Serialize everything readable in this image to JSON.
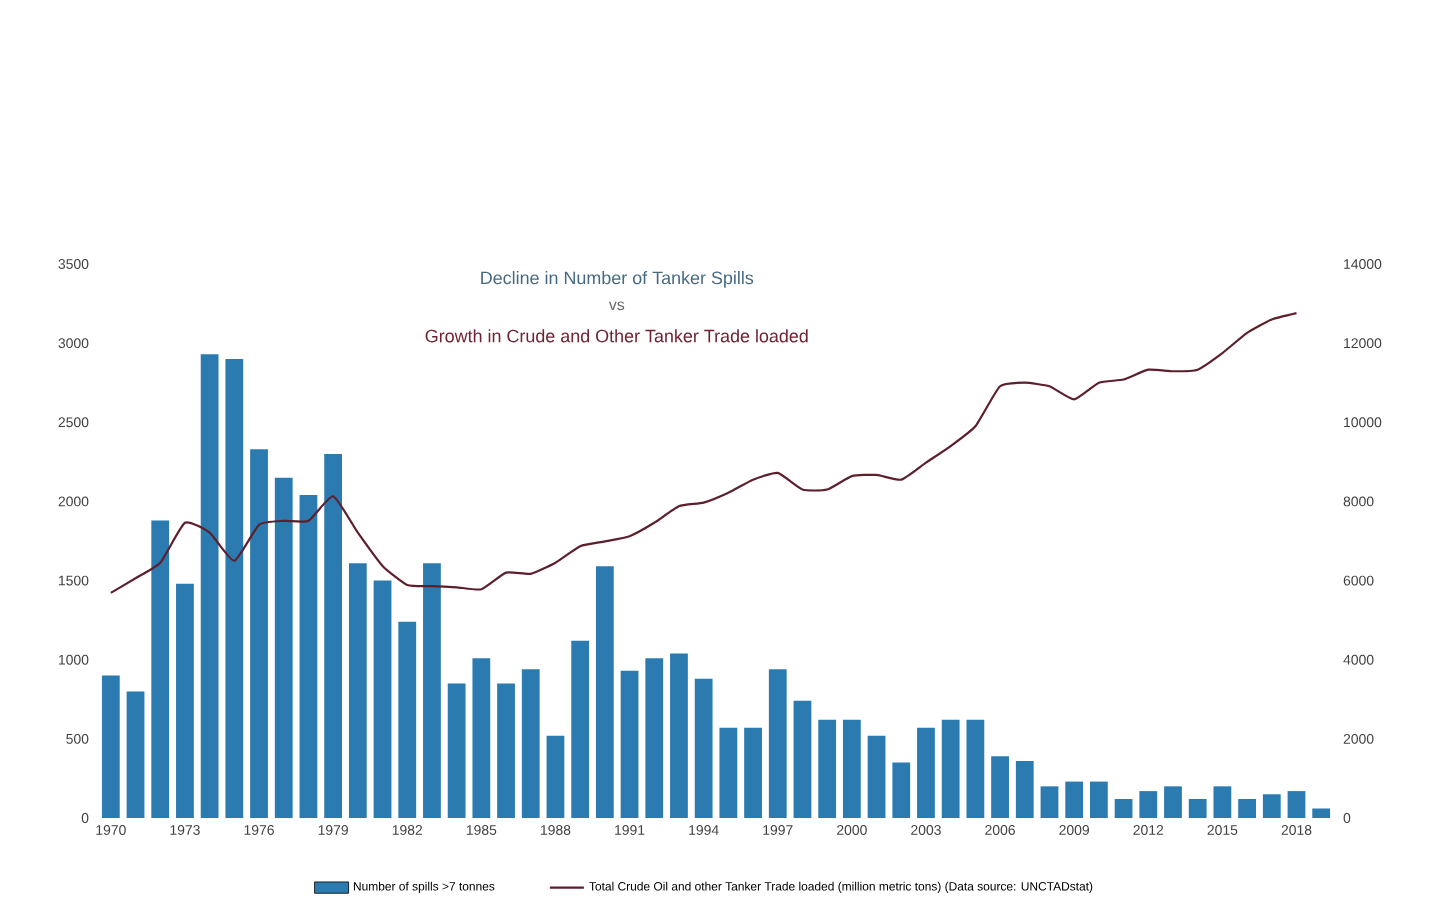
{
  "chart_data": {
    "type": "bar",
    "title": "Decline in Number of Tanker Spills",
    "subtitle": "Growth in Crude and Other Tanker Trade loaded",
    "annotations": [
      "vs"
    ],
    "categories": [
      "1970",
      null,
      null,
      "1973",
      null,
      null,
      "1976",
      null,
      null,
      "1979",
      null,
      null,
      "1982",
      null,
      null,
      "1985",
      null,
      null,
      "1988",
      null,
      null,
      "1991",
      null,
      null,
      "1994",
      null,
      null,
      "1997",
      null,
      null,
      "2000",
      null,
      null,
      "2003",
      null,
      null,
      "2006",
      null,
      null,
      "2009",
      null,
      null,
      "2012",
      null,
      null,
      "2015",
      null,
      null,
      "2018",
      null
    ],
    "series": [
      {
        "name": "Number of spills >7 tonnes",
        "color": "#2b7bb0",
        "values": [
          900,
          800,
          1880,
          1480,
          2930,
          2900,
          2330,
          2150,
          2040,
          2300,
          1610,
          1500,
          1240,
          1610,
          850,
          1010,
          850,
          940,
          520,
          1120,
          1590,
          930,
          1010,
          1040,
          880,
          570,
          570,
          940,
          740,
          620,
          620,
          520,
          350,
          570,
          620,
          620,
          390,
          360,
          200,
          230,
          230,
          120,
          170,
          200,
          120,
          200,
          120,
          150,
          170,
          60
        ]
      },
      {
        "name": "Total Crude Oil and other Tanker Trade loaded (million metric tons) (Data source: UNCTADstat)",
        "type": "line",
        "axis": "y2",
        "color": "#5e1f2c",
        "values": [
          5690,
          6060,
          6450,
          7460,
          7210,
          6500,
          7410,
          7510,
          7510,
          8130,
          7210,
          6370,
          5890,
          5860,
          5830,
          5780,
          6200,
          6170,
          6450,
          6870,
          6990,
          7120,
          7460,
          7880,
          7970,
          8220,
          8550,
          8720,
          8300,
          8300,
          8640,
          8670,
          8550,
          8980,
          9400,
          9900,
          10910,
          11000,
          10910,
          10580,
          11000,
          11080,
          11330,
          11290,
          11330,
          11750,
          12260,
          12600,
          12760,
          null
        ]
      }
    ],
    "ylim": [
      0,
      3500
    ],
    "yticks": [
      0,
      500,
      1000,
      1500,
      2000,
      2500,
      3000,
      3500
    ],
    "y2lim": [
      0,
      14000
    ],
    "y2ticks": [
      0,
      2000,
      4000,
      6000,
      8000,
      10000,
      12000,
      14000
    ],
    "legend": "bottom"
  }
}
